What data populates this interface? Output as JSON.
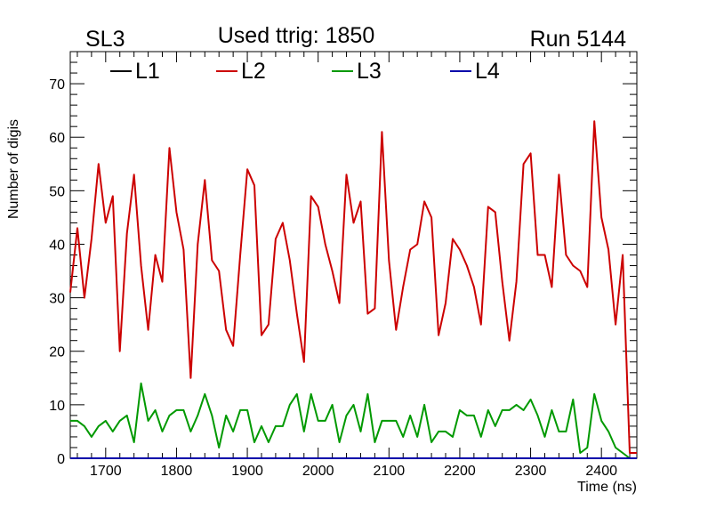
{
  "chart_data": {
    "type": "line",
    "title": "Used ttrig: 1850",
    "corner_left": "SL3",
    "corner_right": "Run 5144",
    "xlabel": "Time (ns)",
    "ylabel": "Number of digis",
    "xlim": [
      1650,
      2450
    ],
    "ylim": [
      0,
      76
    ],
    "x_ticks": [
      1700,
      1800,
      1900,
      2000,
      2100,
      2200,
      2300,
      2400
    ],
    "y_ticks": [
      0,
      10,
      20,
      30,
      40,
      50,
      60,
      70
    ],
    "legend_position": "top",
    "colors": {
      "L1": "#000000",
      "L2": "#cc0000",
      "L3": "#009900",
      "L4": "#0000aa"
    },
    "series": [
      {
        "name": "L1",
        "x": [
          1650,
          2450
        ],
        "values": [
          0,
          0
        ]
      },
      {
        "name": "L2",
        "x": [
          1650,
          1660,
          1670,
          1680,
          1690,
          1700,
          1710,
          1720,
          1730,
          1740,
          1750,
          1760,
          1770,
          1780,
          1790,
          1800,
          1810,
          1820,
          1830,
          1840,
          1850,
          1860,
          1870,
          1880,
          1890,
          1900,
          1910,
          1920,
          1930,
          1940,
          1950,
          1960,
          1970,
          1980,
          1990,
          2000,
          2010,
          2020,
          2030,
          2040,
          2050,
          2060,
          2070,
          2080,
          2090,
          2100,
          2110,
          2120,
          2130,
          2140,
          2150,
          2160,
          2170,
          2180,
          2190,
          2200,
          2210,
          2220,
          2230,
          2240,
          2250,
          2260,
          2270,
          2280,
          2290,
          2300,
          2310,
          2320,
          2330,
          2340,
          2350,
          2360,
          2370,
          2380,
          2390,
          2400,
          2410,
          2420,
          2430,
          2440,
          2450
        ],
        "values": [
          31,
          43,
          30,
          41,
          55,
          44,
          49,
          20,
          42,
          53,
          36,
          24,
          38,
          33,
          58,
          46,
          39,
          15,
          40,
          52,
          37,
          35,
          24,
          21,
          38,
          54,
          51,
          23,
          25,
          41,
          44,
          37,
          27,
          18,
          49,
          47,
          40,
          35,
          29,
          53,
          44,
          48,
          27,
          28,
          61,
          37,
          24,
          32,
          39,
          40,
          48,
          45,
          23,
          29,
          41,
          39,
          36,
          32,
          25,
          47,
          46,
          33,
          22,
          33,
          55,
          57,
          38,
          38,
          32,
          53,
          38,
          36,
          35,
          32,
          63,
          45,
          39,
          25,
          38,
          1,
          1
        ]
      },
      {
        "name": "L3",
        "x": [
          1650,
          1660,
          1670,
          1680,
          1690,
          1700,
          1710,
          1720,
          1730,
          1740,
          1750,
          1760,
          1770,
          1780,
          1790,
          1800,
          1810,
          1820,
          1830,
          1840,
          1850,
          1860,
          1870,
          1880,
          1890,
          1900,
          1910,
          1920,
          1930,
          1940,
          1950,
          1960,
          1970,
          1980,
          1990,
          2000,
          2010,
          2020,
          2030,
          2040,
          2050,
          2060,
          2070,
          2080,
          2090,
          2100,
          2110,
          2120,
          2130,
          2140,
          2150,
          2160,
          2170,
          2180,
          2190,
          2200,
          2210,
          2220,
          2230,
          2240,
          2250,
          2260,
          2270,
          2280,
          2290,
          2300,
          2310,
          2320,
          2330,
          2340,
          2350,
          2360,
          2370,
          2380,
          2390,
          2400,
          2410,
          2420,
          2430,
          2440,
          2450
        ],
        "values": [
          7,
          7,
          6,
          4,
          6,
          7,
          5,
          7,
          8,
          3,
          14,
          7,
          9,
          5,
          8,
          9,
          9,
          5,
          8,
          12,
          8,
          2,
          8,
          5,
          9,
          9,
          3,
          6,
          3,
          6,
          6,
          10,
          12,
          5,
          12,
          7,
          7,
          10,
          3,
          8,
          10,
          5,
          12,
          3,
          7,
          7,
          7,
          4,
          8,
          4,
          10,
          3,
          5,
          5,
          4,
          9,
          8,
          8,
          4,
          9,
          6,
          9,
          9,
          10,
          9,
          11,
          8,
          4,
          9,
          5,
          5,
          11,
          1,
          2,
          12,
          7,
          5,
          2,
          1,
          0,
          0
        ]
      },
      {
        "name": "L4",
        "x": [
          1650,
          2450
        ],
        "values": [
          0,
          0
        ]
      }
    ]
  }
}
